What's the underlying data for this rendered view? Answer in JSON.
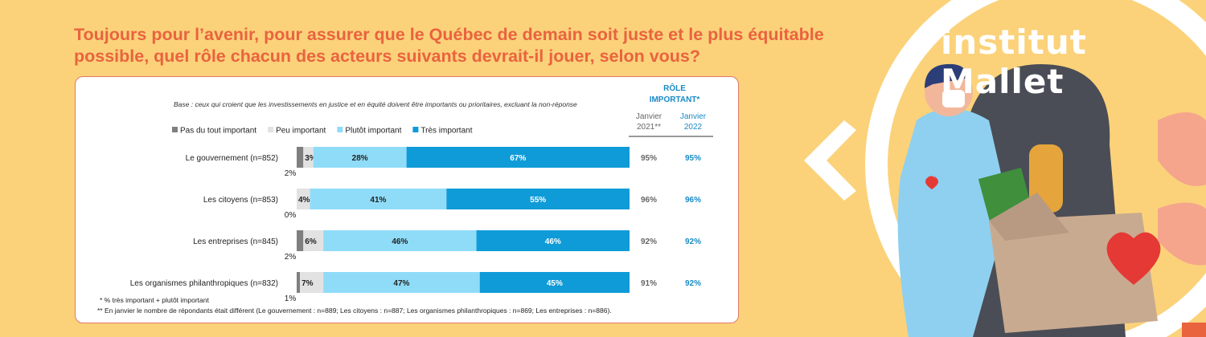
{
  "title": "Toujours pour l’avenir, pour assurer que le Québec de demain soit juste et le plus équitable possible, quel rôle chacun des acteurs suivants devrait-il jouer, selon vous?",
  "brand": "institut Mallet",
  "colors": {
    "accent": "#e9633f",
    "background": "#fbd27a",
    "pas_du_tout": "#7f7f7f",
    "peu": "#e2e2e2",
    "plutot": "#8fdcf8",
    "tres": "#0f9bd7",
    "header_blue": "#1a8ac6"
  },
  "chart_data": {
    "type": "bar",
    "orientation": "horizontal",
    "stacked": true,
    "base_note": "Base : ceux qui croient que les investissements en justice et en équité doivent être importants ou prioritaires, excluant la non-réponse",
    "categories": [
      "Le gouvernement (n=852)",
      "Les citoyens (n=853)",
      "Les entreprises (n=845)",
      "Les organismes philanthropiques (n=832)"
    ],
    "series": [
      {
        "name": "Pas du tout important",
        "values": [
          2,
          0,
          2,
          1
        ],
        "color": "#7f7f7f"
      },
      {
        "name": "Peu important",
        "values": [
          3,
          4,
          6,
          7
        ],
        "color": "#e2e2e2"
      },
      {
        "name": "Plutôt important",
        "values": [
          28,
          41,
          46,
          47
        ],
        "color": "#8fdcf8"
      },
      {
        "name": "Très important",
        "values": [
          67,
          55,
          46,
          45
        ],
        "color": "#0f9bd7"
      }
    ],
    "legend_position": "top-left",
    "side_table": {
      "header": "RÔLE IMPORTANT*",
      "columns": [
        {
          "label_line1": "Janvier",
          "label_line2": "2021**",
          "values": [
            "95%",
            "96%",
            "92%",
            "91%"
          ]
        },
        {
          "label_line1": "Janvier",
          "label_line2": "2022",
          "values": [
            "95%",
            "96%",
            "92%",
            "92%"
          ]
        }
      ]
    },
    "footnotes": [
      "* % très important + plutôt important",
      "** En janvier le nombre de répondants était différent (Le gouvernement : n=889; Les citoyens : n=887; Les organismes philanthropiques : n=869; Les entreprises : n=886)."
    ]
  }
}
